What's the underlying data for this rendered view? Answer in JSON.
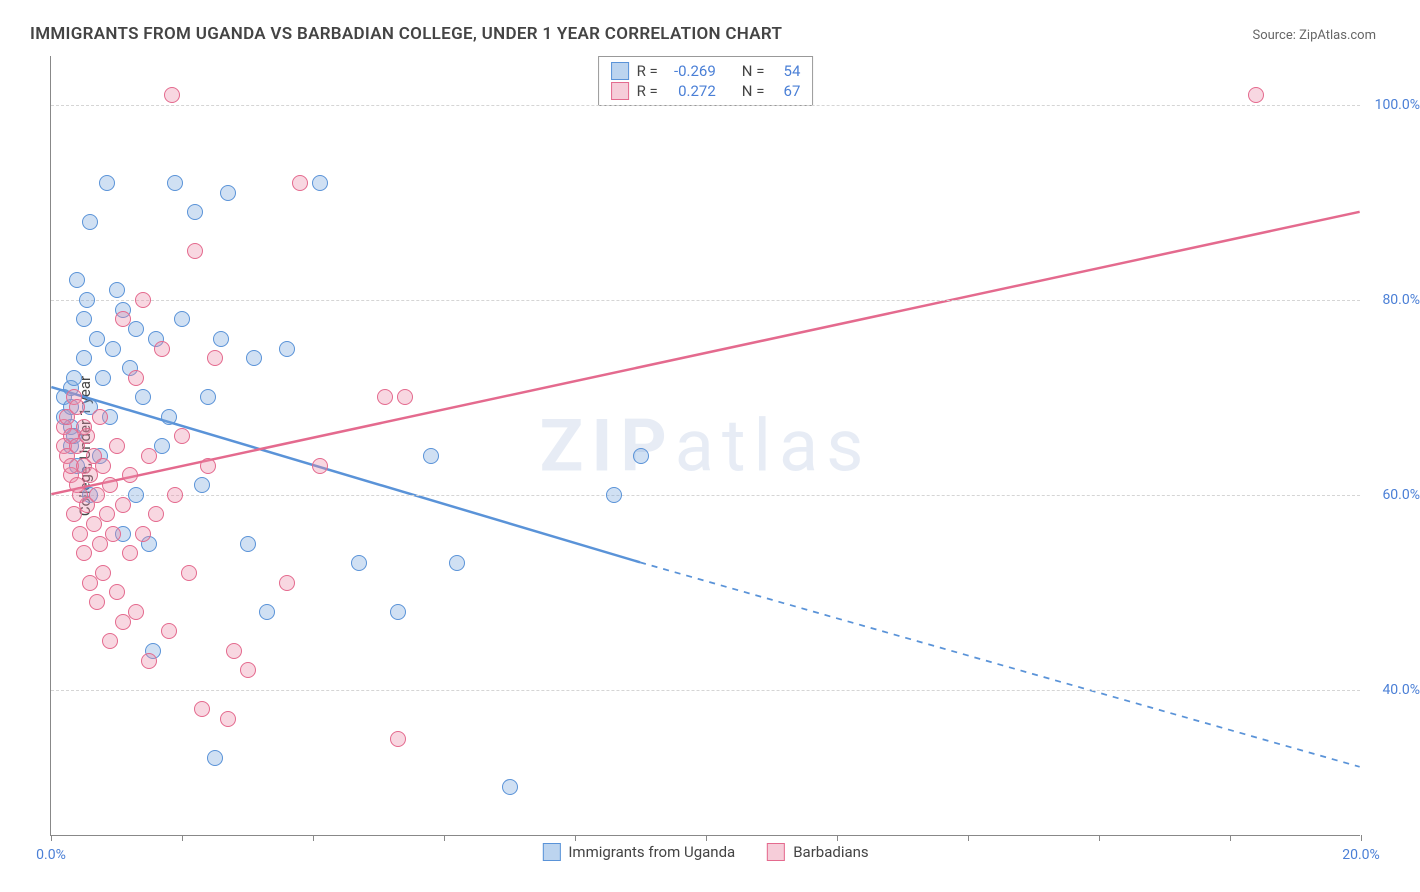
{
  "title": "IMMIGRANTS FROM UGANDA VS BARBADIAN COLLEGE, UNDER 1 YEAR CORRELATION CHART",
  "source_prefix": "Source: ",
  "source_name": "ZipAtlas.com",
  "watermark_bold": "ZIP",
  "watermark_rest": "atlas",
  "y_axis_label": "College, Under 1 year",
  "chart": {
    "type": "scatter",
    "xlim": [
      0,
      20
    ],
    "ylim": [
      25,
      105
    ],
    "x_ticks": [
      0,
      2,
      4,
      6,
      8,
      10,
      12,
      14,
      16,
      18,
      20
    ],
    "x_tick_labels": {
      "0": "0.0%",
      "20": "20.0%"
    },
    "y_gridlines": [
      40,
      60,
      80,
      100
    ],
    "y_tick_labels": {
      "40": "40.0%",
      "60": "60.0%",
      "80": "80.0%",
      "100": "100.0%"
    },
    "background": "#ffffff",
    "grid_color": "#d5d5d5",
    "axis_color": "#888888",
    "label_color": "#4a7fd6",
    "point_radius": 8,
    "point_stroke_width": 1.5,
    "point_fill_opacity": 0.35,
    "trend_line_width": 2.5,
    "series": [
      {
        "name": "Immigrants from Uganda",
        "color_stroke": "#5a93d8",
        "color_fill": "rgba(120,165,220,0.35)",
        "swatch_fill": "#bcd4ef",
        "swatch_border": "#5a93d8",
        "R": "-0.269",
        "N": "54",
        "trend": {
          "x1": 0,
          "y1": 71,
          "x2": 9,
          "y2": 53,
          "dash_x2": 20,
          "dash_y2": 32
        },
        "points": [
          [
            0.2,
            70
          ],
          [
            0.2,
            68
          ],
          [
            0.3,
            71
          ],
          [
            0.3,
            69
          ],
          [
            0.3,
            67
          ],
          [
            0.3,
            65
          ],
          [
            0.35,
            72
          ],
          [
            0.35,
            66
          ],
          [
            0.4,
            63
          ],
          [
            0.4,
            82
          ],
          [
            0.5,
            78
          ],
          [
            0.5,
            74
          ],
          [
            0.55,
            80
          ],
          [
            0.6,
            69
          ],
          [
            0.6,
            60
          ],
          [
            0.6,
            88
          ],
          [
            0.7,
            76
          ],
          [
            0.75,
            64
          ],
          [
            0.8,
            72
          ],
          [
            0.85,
            92
          ],
          [
            0.9,
            68
          ],
          [
            0.95,
            75
          ],
          [
            1.0,
            81
          ],
          [
            1.1,
            56
          ],
          [
            1.1,
            79
          ],
          [
            1.2,
            73
          ],
          [
            1.3,
            77
          ],
          [
            1.3,
            60
          ],
          [
            1.4,
            70
          ],
          [
            1.5,
            55
          ],
          [
            1.55,
            44
          ],
          [
            1.6,
            76
          ],
          [
            1.7,
            65
          ],
          [
            1.8,
            68
          ],
          [
            1.9,
            92
          ],
          [
            2.0,
            78
          ],
          [
            2.2,
            89
          ],
          [
            2.3,
            61
          ],
          [
            2.4,
            70
          ],
          [
            2.5,
            33
          ],
          [
            2.6,
            76
          ],
          [
            2.7,
            91
          ],
          [
            3.0,
            55
          ],
          [
            3.1,
            74
          ],
          [
            3.3,
            48
          ],
          [
            3.6,
            75
          ],
          [
            4.1,
            92
          ],
          [
            4.7,
            53
          ],
          [
            5.3,
            48
          ],
          [
            5.8,
            64
          ],
          [
            6.2,
            53
          ],
          [
            7.0,
            30
          ],
          [
            8.6,
            60
          ],
          [
            9.0,
            64
          ]
        ]
      },
      {
        "name": "Barbadians",
        "color_stroke": "#e46a8e",
        "color_fill": "rgba(235,140,170,0.35)",
        "swatch_fill": "#f6cdd9",
        "swatch_border": "#e46a8e",
        "R": "0.272",
        "N": "67",
        "trend": {
          "x1": 0,
          "y1": 60,
          "x2": 20,
          "y2": 89
        },
        "points": [
          [
            0.2,
            67
          ],
          [
            0.2,
            65
          ],
          [
            0.25,
            64
          ],
          [
            0.25,
            68
          ],
          [
            0.3,
            62
          ],
          [
            0.3,
            66
          ],
          [
            0.3,
            63
          ],
          [
            0.35,
            70
          ],
          [
            0.35,
            58
          ],
          [
            0.4,
            61
          ],
          [
            0.4,
            65
          ],
          [
            0.4,
            69
          ],
          [
            0.45,
            56
          ],
          [
            0.45,
            60
          ],
          [
            0.5,
            63
          ],
          [
            0.5,
            67
          ],
          [
            0.5,
            54
          ],
          [
            0.55,
            59
          ],
          [
            0.55,
            66
          ],
          [
            0.6,
            51
          ],
          [
            0.6,
            62
          ],
          [
            0.65,
            57
          ],
          [
            0.65,
            64
          ],
          [
            0.7,
            49
          ],
          [
            0.7,
            60
          ],
          [
            0.75,
            55
          ],
          [
            0.75,
            68
          ],
          [
            0.8,
            52
          ],
          [
            0.8,
            63
          ],
          [
            0.85,
            58
          ],
          [
            0.9,
            45
          ],
          [
            0.9,
            61
          ],
          [
            0.95,
            56
          ],
          [
            1.0,
            50
          ],
          [
            1.0,
            65
          ],
          [
            1.1,
            47
          ],
          [
            1.1,
            59
          ],
          [
            1.1,
            78
          ],
          [
            1.2,
            54
          ],
          [
            1.2,
            62
          ],
          [
            1.3,
            48
          ],
          [
            1.3,
            72
          ],
          [
            1.4,
            56
          ],
          [
            1.4,
            80
          ],
          [
            1.5,
            43
          ],
          [
            1.5,
            64
          ],
          [
            1.6,
            58
          ],
          [
            1.7,
            75
          ],
          [
            1.8,
            46
          ],
          [
            1.85,
            101
          ],
          [
            1.9,
            60
          ],
          [
            2.0,
            66
          ],
          [
            2.1,
            52
          ],
          [
            2.2,
            85
          ],
          [
            2.3,
            38
          ],
          [
            2.4,
            63
          ],
          [
            2.5,
            74
          ],
          [
            2.7,
            37
          ],
          [
            2.8,
            44
          ],
          [
            3.0,
            42
          ],
          [
            3.6,
            51
          ],
          [
            3.8,
            92
          ],
          [
            4.1,
            63
          ],
          [
            5.1,
            70
          ],
          [
            5.3,
            35
          ],
          [
            5.4,
            70
          ],
          [
            18.4,
            101
          ]
        ]
      }
    ]
  },
  "legend_top_labels": {
    "R": "R =",
    "N": "N ="
  },
  "legend_bottom": [
    {
      "label": "Immigrants from Uganda",
      "swatch_fill": "#bcd4ef",
      "swatch_border": "#5a93d8"
    },
    {
      "label": "Barbadians",
      "swatch_fill": "#f6cdd9",
      "swatch_border": "#e46a8e"
    }
  ]
}
